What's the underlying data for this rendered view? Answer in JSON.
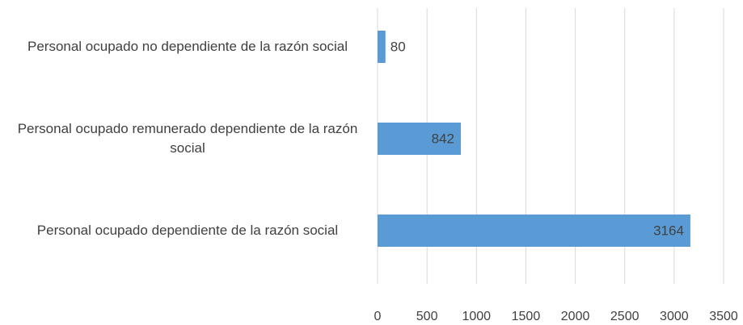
{
  "chart_data": {
    "type": "bar",
    "orientation": "horizontal",
    "categories": [
      "Personal ocupado no dependiente de la razón social",
      "Personal ocupado remunerado dependiente de la razón social",
      "Personal ocupado dependiente de la razón social"
    ],
    "values": [
      80,
      842,
      3164
    ],
    "color": "#5b9bd5",
    "xlim": [
      0,
      3500
    ],
    "xticks": [
      0,
      500,
      1000,
      1500,
      2000,
      2500,
      3000,
      3500
    ],
    "grid": true
  }
}
